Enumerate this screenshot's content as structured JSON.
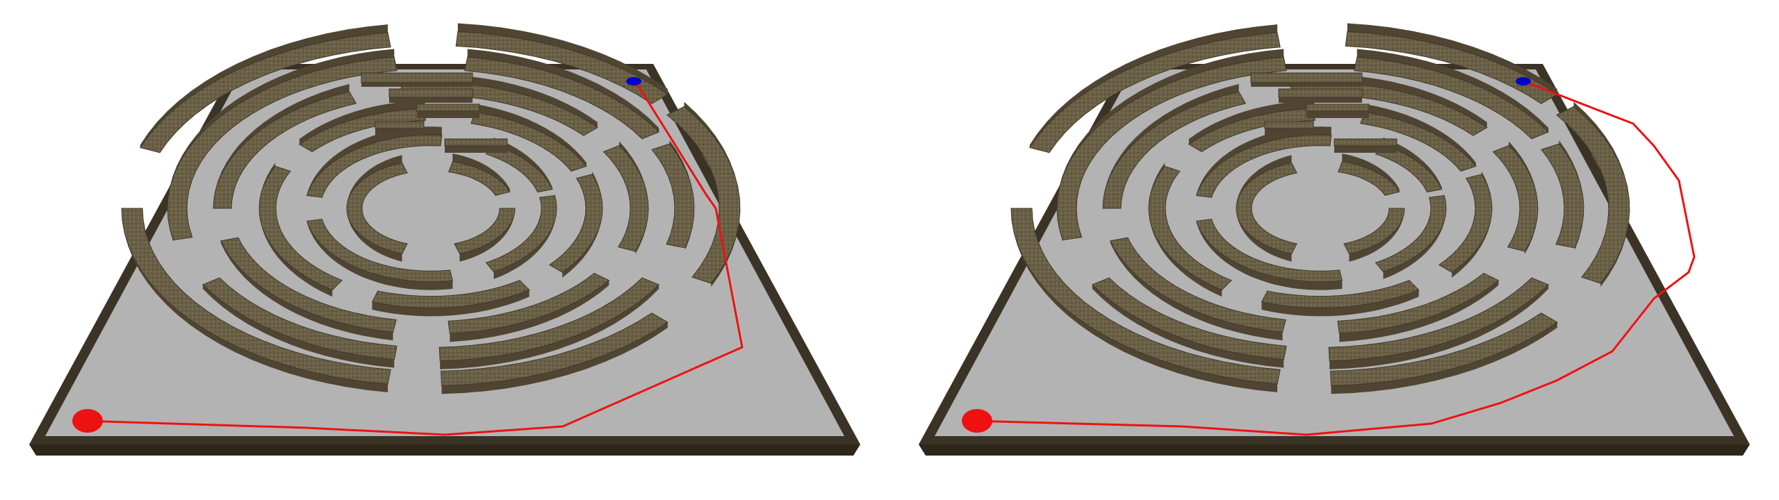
{
  "scene": {
    "type": "maze-path-comparison",
    "panel_count": 2,
    "colors": {
      "background": "#ffffff",
      "floor": "#b3b3b3",
      "wall_top": "#6a6046",
      "wall_side": "#4f4532",
      "frame_edge": "#3b3326",
      "start_marker": "#ee1111",
      "goal_marker": "#0000cc",
      "path": "#ee1111"
    }
  },
  "panels": [
    {
      "name": "left-panel",
      "path_variant": "coarse"
    },
    {
      "name": "right-panel",
      "path_variant": "smooth"
    }
  ]
}
